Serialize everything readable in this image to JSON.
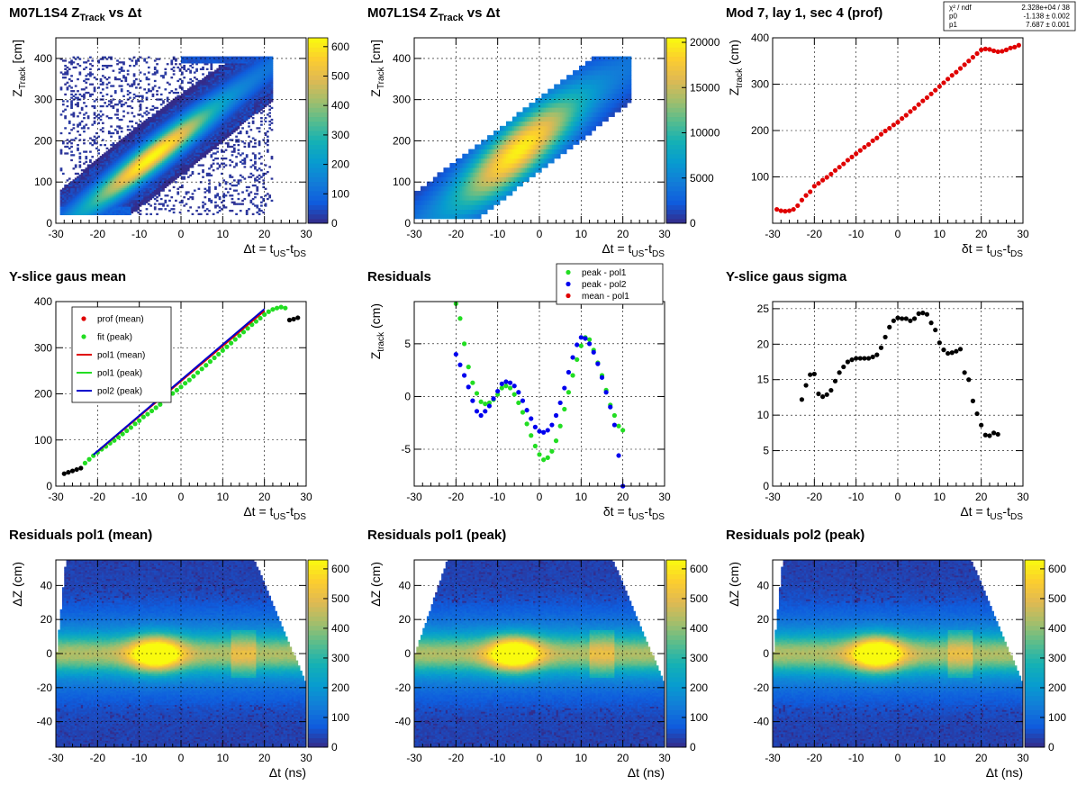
{
  "chart_data": [
    {
      "type": "heatmap",
      "title": "M07L1S4  Z_Track vs Δt",
      "xlabel": "Δt = t_US - t_DS",
      "ylabel": "Z_Track [cm]",
      "xlim": [
        -30,
        30
      ],
      "ylim": [
        0,
        450
      ],
      "xticks": [
        -30,
        -20,
        -10,
        0,
        10,
        20,
        30
      ],
      "yticks": [
        0,
        100,
        200,
        300,
        400
      ],
      "colorbar_ticks": [
        0,
        100,
        200,
        300,
        400,
        500,
        600
      ],
      "colorbar_max": 630,
      "density": {
        "kind": "diagonal-band",
        "z_at_dt_0": 215,
        "slope_cm_per_ns": 7.7,
        "peak_dt": -7,
        "peak_value": 630,
        "range_dt": [
          -29,
          22
        ],
        "range_z": [
          20,
          405
        ],
        "noise": "scattered",
        "saturate_dt": 20,
        "saturate_z": 400
      },
      "grid": true
    },
    {
      "type": "heatmap",
      "title": "M07L1S4  Z_Track vs Δt",
      "xlabel": "Δt = t_US - t_DS",
      "ylabel": "Z_Track [cm]",
      "xlim": [
        -30,
        30
      ],
      "ylim": [
        0,
        450
      ],
      "xticks": [
        -30,
        -20,
        -10,
        0,
        10,
        20,
        30
      ],
      "yticks": [
        0,
        100,
        200,
        300,
        400
      ],
      "colorbar_ticks": [
        0,
        5000,
        10000,
        15000,
        20000
      ],
      "colorbar_max": 20500,
      "density": {
        "kind": "diagonal-band-coarse",
        "z_at_dt_0": 215,
        "slope_cm_per_ns": 7.7,
        "peak_dt": -5,
        "peak_value": 20000,
        "range_dt": [
          -30,
          22
        ],
        "range_z": [
          10,
          405
        ]
      },
      "grid": true
    },
    {
      "type": "scatter",
      "title": "Mod 7, lay 1, sec 4 (prof)",
      "xlabel": "δt = t_US - t_DS",
      "ylabel": "Z_track (cm)",
      "xlim": [
        -30,
        30
      ],
      "ylim": [
        0,
        400
      ],
      "xticks": [
        -30,
        -20,
        -10,
        0,
        10,
        20,
        30
      ],
      "yticks": [
        100,
        200,
        300,
        400
      ],
      "series": [
        {
          "color": "#e00000",
          "x": [
            -29,
            -28,
            -27,
            -26,
            -25,
            -24,
            -23,
            -22,
            -21,
            -20,
            -19,
            -18,
            -17,
            -16,
            -15,
            -14,
            -13,
            -12,
            -11,
            -10,
            -9,
            -8,
            -7,
            -6,
            -5,
            -4,
            -3,
            -2,
            -1,
            0,
            1,
            2,
            3,
            4,
            5,
            6,
            7,
            8,
            9,
            10,
            11,
            12,
            13,
            14,
            15,
            16,
            17,
            18,
            19,
            20,
            21,
            22,
            23,
            24,
            25,
            26,
            27,
            28,
            29
          ],
          "y": [
            30,
            27,
            26,
            27,
            30,
            38,
            50,
            60,
            68,
            80,
            86,
            93,
            99,
            106,
            114,
            121,
            128,
            136,
            143,
            150,
            157,
            164,
            170,
            178,
            184,
            192,
            199,
            205,
            212,
            218,
            226,
            233,
            241,
            248,
            256,
            264,
            271,
            279,
            287,
            295,
            303,
            311,
            319,
            326,
            334,
            342,
            350,
            358,
            366,
            374,
            376,
            375,
            372,
            370,
            371,
            374,
            378,
            380,
            384
          ]
        }
      ],
      "stats_box": {
        "rows": [
          [
            "χ² / ndf",
            "2.328e+04 / 38"
          ],
          [
            "p0",
            "-1.138 ± 0.002"
          ],
          [
            "p1",
            "7.687 ± 0.001"
          ]
        ]
      },
      "grid": true
    },
    {
      "type": "scatter",
      "title": "Y-slice gaus mean",
      "xlabel": "Δt = t_US - t_DS",
      "ylabel": "",
      "xlim": [
        -30,
        30
      ],
      "ylim": [
        0,
        400
      ],
      "xticks": [
        -30,
        -20,
        -10,
        0,
        10,
        20,
        30
      ],
      "yticks": [
        0,
        100,
        200,
        300,
        400
      ],
      "legend": {
        "placement": "top-left",
        "entries": [
          {
            "label": "prof (mean)",
            "color": "#e00000",
            "kind": "marker"
          },
          {
            "label": "fit (peak)",
            "color": "#22dd22",
            "kind": "marker"
          },
          {
            "label": "pol1 (mean)",
            "color": "#e00000",
            "kind": "line"
          },
          {
            "label": "pol1 (peak)",
            "color": "#22dd22",
            "kind": "line"
          },
          {
            "label": "pol2 (peak)",
            "color": "#0000cc",
            "kind": "line"
          }
        ]
      },
      "series": [
        {
          "color": "#000000",
          "x": [
            -28,
            -27,
            -26,
            -25,
            -24,
            26,
            27,
            28
          ],
          "y": [
            27,
            30,
            33,
            36,
            39,
            360,
            362,
            365
          ]
        },
        {
          "color": "#22dd22",
          "x": [
            -23,
            -22,
            -21,
            -20,
            -19,
            -18,
            -17,
            -16,
            -15,
            -14,
            -13,
            -12,
            -11,
            -10,
            -9,
            -8,
            -7,
            -6,
            -5,
            -4,
            -3,
            -2,
            -1,
            0,
            1,
            2,
            3,
            4,
            5,
            6,
            7,
            8,
            9,
            10,
            11,
            12,
            13,
            14,
            15,
            16,
            17,
            18,
            19,
            20,
            21,
            22,
            23,
            24,
            25
          ],
          "y": [
            50,
            58,
            66,
            73,
            80,
            86,
            93,
            99,
            106,
            113,
            120,
            127,
            135,
            142,
            150,
            156,
            163,
            170,
            177,
            186,
            193,
            201,
            208,
            215,
            223,
            230,
            238,
            246,
            254,
            262,
            270,
            278,
            286,
            294,
            302,
            310,
            318,
            326,
            334,
            342,
            350,
            357,
            364,
            372,
            378,
            383,
            386,
            388,
            386
          ]
        },
        {
          "color": "#e00000",
          "kind": "line",
          "x": [
            -20,
            20
          ],
          "y": [
            75,
            380
          ]
        },
        {
          "color": "#0000cc",
          "kind": "line",
          "x": [
            -21,
            20
          ],
          "y": [
            68,
            384
          ]
        }
      ],
      "grid": true
    },
    {
      "type": "scatter",
      "title": "Residuals",
      "xlabel": "δt = t_US - t_DS",
      "ylabel": "Z_track (cm)",
      "xlim": [
        -30,
        30
      ],
      "ylim": [
        -8.5,
        9
      ],
      "xticks": [
        -30,
        -20,
        -10,
        0,
        10,
        20,
        30
      ],
      "yticks": [
        -5,
        0,
        5
      ],
      "legend": {
        "placement": "top-right",
        "entries": [
          {
            "label": "peak - pol1",
            "color": "#22dd22",
            "kind": "marker"
          },
          {
            "label": "peak - pol2",
            "color": "#0000ee",
            "kind": "marker"
          },
          {
            "label": "mean - pol1",
            "color": "#e00000",
            "kind": "marker"
          }
        ]
      },
      "series": [
        {
          "color": "#22dd22",
          "x": [
            -20,
            -19,
            -18,
            -17,
            -16,
            -15,
            -14,
            -13,
            -12,
            -11,
            -10,
            -9,
            -8,
            -7,
            -6,
            -5,
            -4,
            -3,
            -2,
            -1,
            0,
            1,
            2,
            3,
            4,
            5,
            6,
            7,
            8,
            9,
            10,
            11,
            12,
            13,
            14,
            15,
            16,
            17,
            18,
            19,
            20
          ],
          "y": [
            8.8,
            7.4,
            5.0,
            2.8,
            1.3,
            0.3,
            -0.5,
            -0.7,
            -0.6,
            -0.3,
            0.2,
            0.8,
            1.0,
            0.8,
            0.2,
            -0.6,
            -1.5,
            -2.6,
            -3.7,
            -4.7,
            -5.5,
            -6.0,
            -5.8,
            -5.2,
            -4.2,
            -2.8,
            -1.2,
            0.4,
            2.0,
            3.5,
            4.8,
            5.6,
            5.4,
            4.4,
            3.2,
            2.0,
            0.6,
            -0.8,
            -1.8,
            -2.8,
            -3.2
          ]
        },
        {
          "color": "#0000ee",
          "x": [
            -20,
            -19,
            -18,
            -17,
            -16,
            -15,
            -14,
            -13,
            -12,
            -11,
            -10,
            -9,
            -8,
            -7,
            -6,
            -5,
            -4,
            -3,
            -2,
            -1,
            0,
            1,
            2,
            3,
            4,
            5,
            6,
            7,
            8,
            9,
            10,
            11,
            12,
            13,
            14,
            15,
            16,
            17,
            18,
            19,
            20
          ],
          "y": [
            4.0,
            3.0,
            2.0,
            0.9,
            -0.4,
            -1.4,
            -1.8,
            -1.4,
            -0.9,
            -0.2,
            0.5,
            1.2,
            1.4,
            1.3,
            1.0,
            0.4,
            -0.4,
            -1.3,
            -2.1,
            -2.9,
            -3.3,
            -3.4,
            -3.2,
            -2.7,
            -1.8,
            -0.6,
            0.8,
            2.3,
            3.7,
            4.9,
            5.6,
            5.5,
            5.0,
            4.2,
            3.1,
            1.8,
            0.4,
            -1.0,
            -2.7,
            -5.6,
            -8.5
          ]
        }
      ],
      "grid": true
    },
    {
      "type": "scatter",
      "title": "Y-slice gaus sigma",
      "xlabel": "Δt = t_US - t_DS",
      "ylabel": "",
      "xlim": [
        -30,
        30
      ],
      "ylim": [
        0,
        26
      ],
      "xticks": [
        -30,
        -20,
        -10,
        0,
        10,
        20,
        30
      ],
      "yticks": [
        0,
        5,
        10,
        15,
        20,
        25
      ],
      "series": [
        {
          "color": "#000000",
          "x": [
            -23,
            -22,
            -21,
            -20,
            -19,
            -18,
            -17,
            -16,
            -15,
            -14,
            -13,
            -12,
            -11,
            -10,
            -9,
            -8,
            -7,
            -6,
            -5,
            -4,
            -3,
            -2,
            -1,
            0,
            1,
            2,
            3,
            4,
            5,
            6,
            7,
            8,
            9,
            10,
            11,
            12,
            13,
            14,
            15,
            16,
            17,
            18,
            19,
            20,
            21,
            22,
            23,
            24
          ],
          "y": [
            12.2,
            14.2,
            15.7,
            15.8,
            13.0,
            12.6,
            12.9,
            13.5,
            14.8,
            16.0,
            16.8,
            17.5,
            17.8,
            18.0,
            18.0,
            18.0,
            18.0,
            18.2,
            18.5,
            19.5,
            21.0,
            22.4,
            23.3,
            23.7,
            23.6,
            23.6,
            23.3,
            23.6,
            24.3,
            24.4,
            24.2,
            23.0,
            22.0,
            20.2,
            19.2,
            18.7,
            18.8,
            19.0,
            19.3,
            16.0,
            15.0,
            12.0,
            10.2,
            8.6,
            7.2,
            7.1,
            7.5,
            7.3
          ]
        }
      ],
      "grid": true
    },
    {
      "type": "heatmap",
      "title": "Residuals pol1 (mean)",
      "xlabel": "Δt  (ns)",
      "ylabel": "ΔZ  (cm)",
      "xlim": [
        -30,
        30
      ],
      "ylim": [
        -55,
        55
      ],
      "xticks": [
        -30,
        -20,
        -10,
        0,
        10,
        20,
        30
      ],
      "yticks": [
        -40,
        -20,
        0,
        20,
        40
      ],
      "colorbar_ticks": [
        0,
        100,
        200,
        300,
        400,
        500,
        600
      ],
      "colorbar_max": 630,
      "density": {
        "kind": "residual-band",
        "peak_dt": -6,
        "peak_value": 630,
        "shear": 0.0
      },
      "grid": true
    },
    {
      "type": "heatmap",
      "title": "Residuals pol1 (peak)",
      "xlabel": "Δt  (ns)",
      "ylabel": "ΔZ  (cm)",
      "xlim": [
        -30,
        30
      ],
      "ylim": [
        -55,
        55
      ],
      "xticks": [
        -30,
        -20,
        -10,
        0,
        10,
        20,
        30
      ],
      "yticks": [
        -40,
        -20,
        0,
        20,
        40
      ],
      "colorbar_ticks": [
        0,
        100,
        200,
        300,
        400,
        500,
        600
      ],
      "colorbar_max": 630,
      "density": {
        "kind": "residual-band",
        "peak_dt": -6,
        "peak_value": 630,
        "shear": 0.1
      },
      "grid": true
    },
    {
      "type": "heatmap",
      "title": "Residuals pol2 (peak)",
      "xlabel": "Δt  (ns)",
      "ylabel": "ΔZ  (cm)",
      "xlim": [
        -30,
        30
      ],
      "ylim": [
        -55,
        55
      ],
      "xticks": [
        -30,
        -20,
        -10,
        0,
        10,
        20,
        30
      ],
      "yticks": [
        -40,
        -20,
        0,
        20,
        40
      ],
      "colorbar_ticks": [
        0,
        100,
        200,
        300,
        400,
        500,
        600
      ],
      "colorbar_max": 630,
      "density": {
        "kind": "residual-band",
        "peak_dt": -5,
        "peak_value": 630,
        "shear": 0.0
      },
      "grid": true
    }
  ]
}
